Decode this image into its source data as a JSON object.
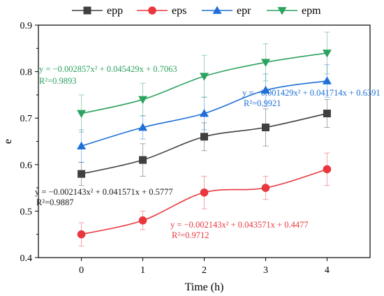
{
  "chart_data": {
    "type": "line",
    "title": "",
    "xlabel": "Time (h)",
    "ylabel": "e",
    "x": [
      0,
      1,
      2,
      3,
      4
    ],
    "xlim": [
      -0.7,
      4.7
    ],
    "ylim": [
      0.4,
      0.9
    ],
    "xticks": [
      "0",
      "1",
      "2",
      "3",
      "4"
    ],
    "yticks": [
      "0.4",
      "0.5",
      "0.6",
      "0.7",
      "0.8",
      "0.9"
    ],
    "grid": false,
    "legend_position": "top",
    "series": [
      {
        "name": "epp",
        "color": "#404040",
        "marker": "square",
        "values": [
          0.58,
          0.61,
          0.66,
          0.68,
          0.71
        ],
        "errors": [
          0.025,
          0.035,
          0.03,
          0.04,
          0.03
        ],
        "equation": "y = −0.002143x² + 0.041571x + 0.5777",
        "r2": "R²=0.9887"
      },
      {
        "name": "eps",
        "color": "#e8373d",
        "marker": "circle",
        "values": [
          0.45,
          0.48,
          0.54,
          0.55,
          0.59
        ],
        "errors": [
          0.025,
          0.02,
          0.035,
          0.025,
          0.035
        ],
        "equation": "y = −0.002143x² + 0.043571x + 0.4477",
        "r2": "R²=0.9712"
      },
      {
        "name": "epr",
        "color": "#1f6fd8",
        "marker": "triangle-up",
        "values": [
          0.64,
          0.68,
          0.71,
          0.76,
          0.78
        ],
        "errors": [
          0.035,
          0.025,
          0.035,
          0.035,
          0.035
        ],
        "equation": "y = −0.001429x² + 0.041714x + 0.6391",
        "r2": "R²=0.9921"
      },
      {
        "name": "epm",
        "color": "#2ca25f",
        "marker": "triangle-down",
        "values": [
          0.71,
          0.74,
          0.79,
          0.82,
          0.84
        ],
        "errors": [
          0.04,
          0.035,
          0.045,
          0.04,
          0.045
        ],
        "equation": "y = −0.002857x² + 0.045429x + 0.7063",
        "r2": "R²=0.9893"
      }
    ]
  }
}
